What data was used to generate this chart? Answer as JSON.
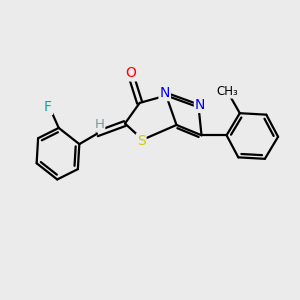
{
  "bg_color": "#ebebeb",
  "bond_color": "#000000",
  "atom_colors": {
    "O": "#ff0000",
    "N": "#0000ee",
    "S": "#cccc00",
    "F": "#00aaaa",
    "H": "#7a9a9a",
    "C": "#000000"
  },
  "figsize": [
    3.0,
    3.0
  ],
  "dpi": 100,
  "lw": 1.6
}
